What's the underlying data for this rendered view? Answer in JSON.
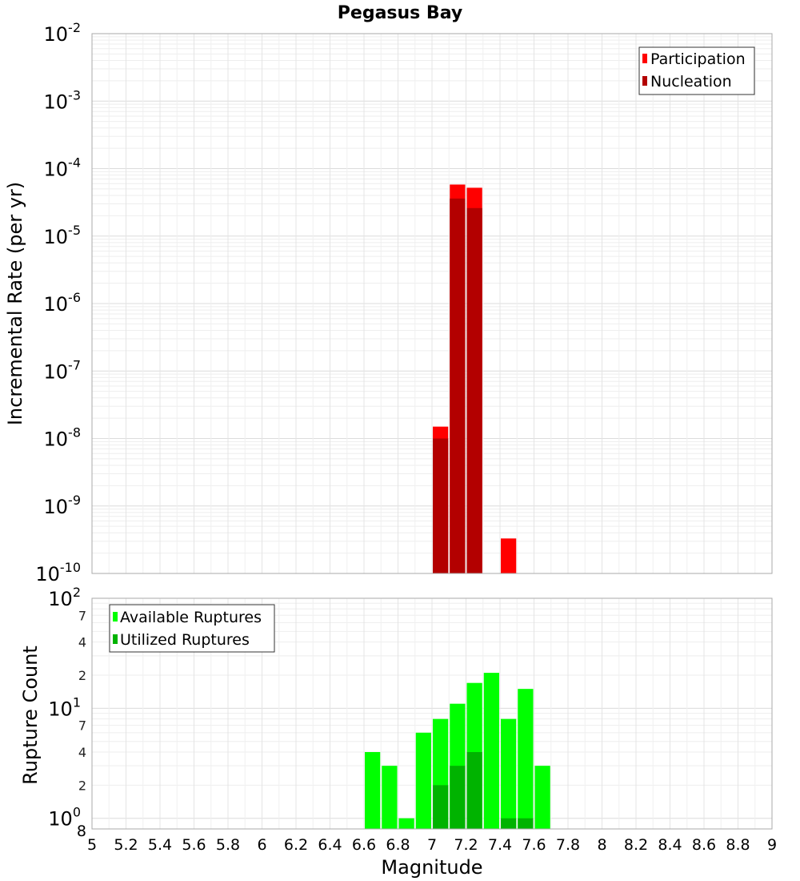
{
  "chart_data": [
    {
      "type": "bar",
      "title": "Pegasus Bay",
      "xlabel": "",
      "ylabel": "Incremental Rate (per yr)",
      "yscale": "log",
      "ylim": [
        1e-10,
        0.01
      ],
      "xlim": [
        5,
        9
      ],
      "legend_position": "top-right",
      "grid": true,
      "y_tick_labels": [
        {
          "base": "10",
          "exp": "-10"
        },
        {
          "base": "10",
          "exp": "-9"
        },
        {
          "base": "10",
          "exp": "-8"
        },
        {
          "base": "10",
          "exp": "-7"
        },
        {
          "base": "10",
          "exp": "-6"
        },
        {
          "base": "10",
          "exp": "-5"
        },
        {
          "base": "10",
          "exp": "-4"
        },
        {
          "base": "10",
          "exp": "-3"
        },
        {
          "base": "10",
          "exp": "-2"
        }
      ],
      "series": [
        {
          "name": "Participation",
          "color": "#ff0000",
          "points": [
            {
              "x": 7.05,
              "y": 1.5e-08
            },
            {
              "x": 7.15,
              "y": 5.8e-05
            },
            {
              "x": 7.25,
              "y": 5.2e-05
            },
            {
              "x": 7.45,
              "y": 3.3e-10
            }
          ]
        },
        {
          "name": "Nucleation",
          "color": "#b30000",
          "points": [
            {
              "x": 7.05,
              "y": 1e-08
            },
            {
              "x": 7.15,
              "y": 3.6e-05
            },
            {
              "x": 7.25,
              "y": 2.6e-05
            }
          ]
        }
      ]
    },
    {
      "type": "bar",
      "xlabel": "Magnitude",
      "ylabel": "Rupture Count",
      "yscale": "log",
      "ylim": [
        0.8,
        100
      ],
      "xlim": [
        5,
        9
      ],
      "legend_position": "top-left",
      "grid": true,
      "x_tick_labels": [
        "5",
        "5.2",
        "5.4",
        "5.6",
        "5.8",
        "6",
        "6.2",
        "6.4",
        "6.6",
        "6.8",
        "7",
        "7.2",
        "7.4",
        "7.6",
        "7.8",
        "8",
        "8.2",
        "8.4",
        "8.6",
        "8.8",
        "9"
      ],
      "y_tick_labels": [
        {
          "base": "10",
          "exp": "0"
        },
        {
          "base": "10",
          "exp": "1"
        },
        {
          "base": "10",
          "exp": "2"
        }
      ],
      "y_minor_labels": [
        "8",
        "2",
        "4",
        "7",
        "2",
        "4",
        "7"
      ],
      "series": [
        {
          "name": "Available Ruptures",
          "color": "#00ff00",
          "points": [
            {
              "x": 6.65,
              "y": 4
            },
            {
              "x": 6.75,
              "y": 3
            },
            {
              "x": 6.85,
              "y": 1
            },
            {
              "x": 6.95,
              "y": 6
            },
            {
              "x": 7.05,
              "y": 8
            },
            {
              "x": 7.15,
              "y": 11
            },
            {
              "x": 7.25,
              "y": 17
            },
            {
              "x": 7.35,
              "y": 21
            },
            {
              "x": 7.45,
              "y": 8
            },
            {
              "x": 7.55,
              "y": 15
            },
            {
              "x": 7.65,
              "y": 3
            }
          ]
        },
        {
          "name": "Utilized Ruptures",
          "color": "#00b300",
          "points": [
            {
              "x": 7.05,
              "y": 2
            },
            {
              "x": 7.15,
              "y": 3
            },
            {
              "x": 7.25,
              "y": 4
            },
            {
              "x": 7.45,
              "y": 1
            },
            {
              "x": 7.55,
              "y": 1
            }
          ]
        }
      ]
    }
  ]
}
